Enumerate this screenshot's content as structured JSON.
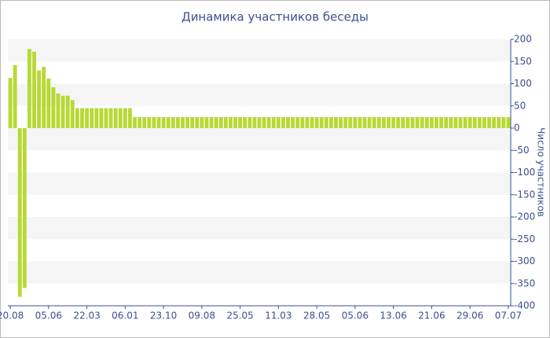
{
  "chart_data": {
    "type": "bar",
    "title": "Динамика участников беседы",
    "y_axis_label": "Число участников",
    "categories": [
      "20.08",
      null,
      null,
      null,
      null,
      null,
      null,
      null,
      "05.06",
      null,
      null,
      null,
      null,
      null,
      null,
      null,
      "22.03",
      null,
      null,
      null,
      null,
      null,
      null,
      null,
      "06.01",
      null,
      null,
      null,
      null,
      null,
      null,
      null,
      "23.10",
      null,
      null,
      null,
      null,
      null,
      null,
      null,
      "09.08",
      null,
      null,
      null,
      null,
      null,
      null,
      null,
      "25.05",
      null,
      null,
      null,
      null,
      null,
      null,
      null,
      "11.03",
      null,
      null,
      null,
      null,
      null,
      null,
      null,
      "28.05",
      null,
      null,
      null,
      null,
      null,
      null,
      null,
      "05.06",
      null,
      null,
      null,
      null,
      null,
      null,
      null,
      "13.06",
      null,
      null,
      null,
      null,
      null,
      null,
      null,
      "21.06",
      null,
      null,
      null,
      null,
      null,
      null,
      null,
      "29.06",
      null,
      null,
      null,
      null,
      null,
      null,
      null,
      "07.07"
    ],
    "values": [
      113,
      142,
      -380,
      -360,
      178,
      172,
      130,
      138,
      112,
      92,
      78,
      73,
      73,
      63,
      45,
      45,
      45,
      45,
      45,
      45,
      45,
      45,
      45,
      45,
      45,
      45,
      25,
      25,
      25,
      25,
      25,
      25,
      25,
      25,
      25,
      25,
      25,
      25,
      25,
      25,
      25,
      25,
      25,
      25,
      25,
      25,
      25,
      25,
      25,
      25,
      25,
      25,
      25,
      25,
      25,
      25,
      25,
      25,
      25,
      25,
      25,
      25,
      25,
      25,
      25,
      25,
      25,
      25,
      25,
      25,
      25,
      25,
      25,
      25,
      25,
      25,
      25,
      25,
      25,
      25,
      25,
      25,
      25,
      25,
      25,
      25,
      25,
      25,
      25,
      25,
      25,
      25,
      25,
      25,
      25,
      25,
      25,
      25,
      25,
      25,
      25,
      25,
      25,
      25,
      25
    ],
    "color": "#b8d836",
    "ylim": [
      -400,
      200
    ],
    "yticks": [
      200,
      150,
      100,
      50,
      0,
      -50,
      -100,
      -150,
      -200,
      -250,
      -300,
      -350,
      -400
    ],
    "grid": true
  }
}
